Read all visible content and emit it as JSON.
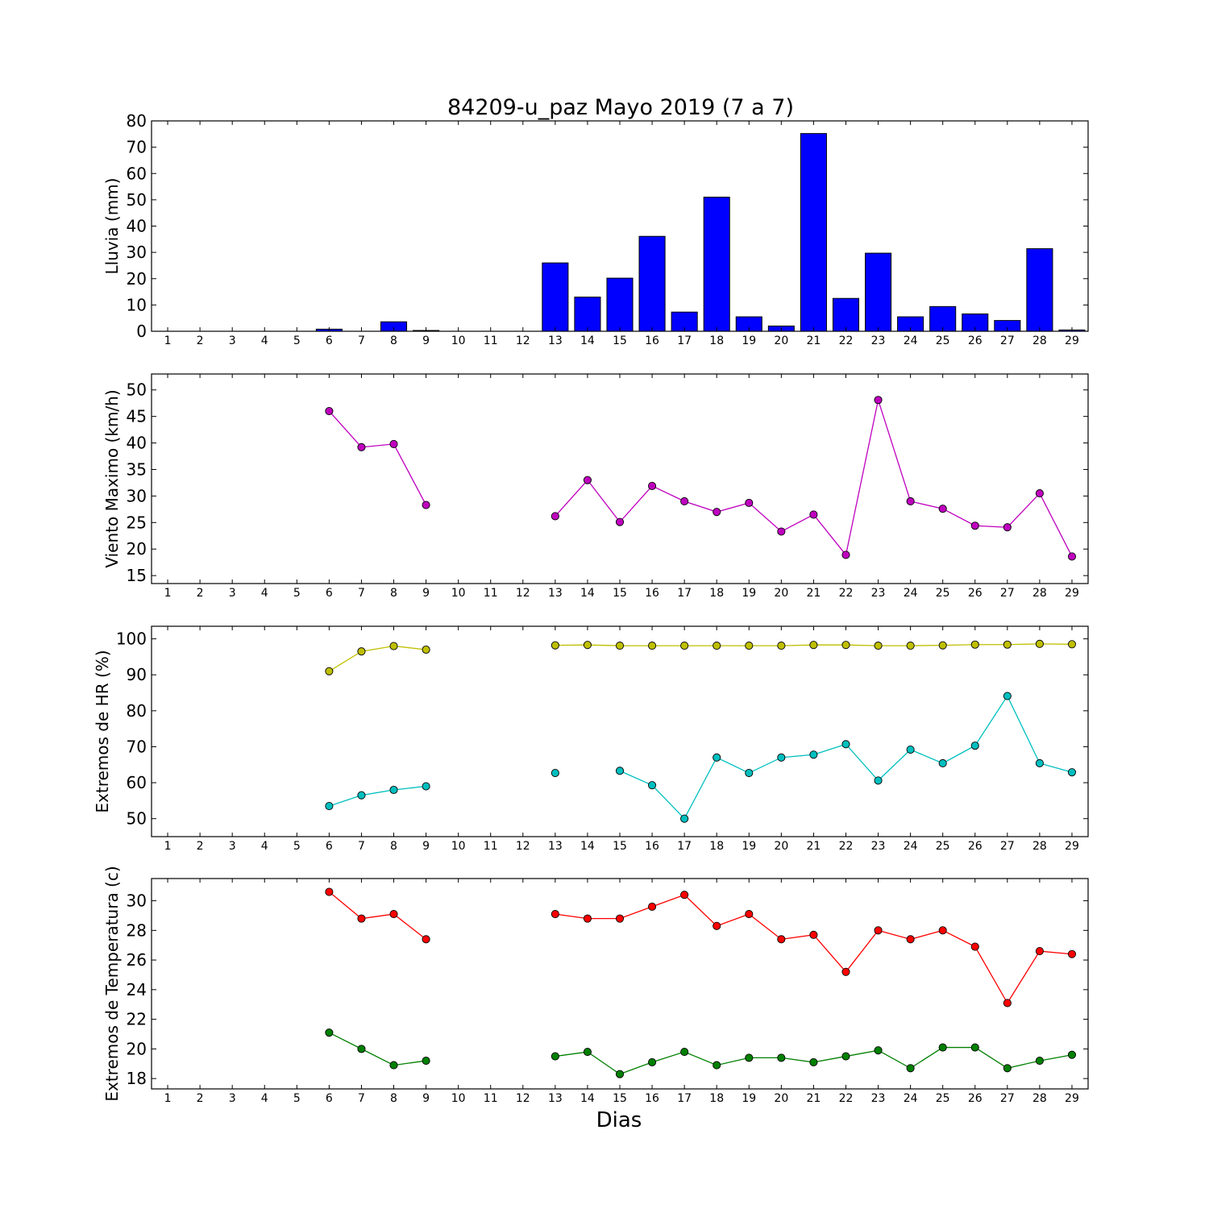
{
  "chart_data": [
    {
      "type": "bar",
      "title": "84209-u_paz Mayo 2019  (7 a 7)",
      "xlabel": "",
      "ylabel": "Lluvia (mm)",
      "ylim": [
        0,
        80
      ],
      "yticks": [
        0,
        10,
        20,
        30,
        40,
        50,
        60,
        70,
        80
      ],
      "categories": [
        "1",
        "2",
        "3",
        "4",
        "5",
        "6",
        "7",
        "8",
        "9",
        "10",
        "11",
        "12",
        "13",
        "14",
        "15",
        "16",
        "17",
        "18",
        "19",
        "20",
        "21",
        "22",
        "23",
        "24",
        "25",
        "26",
        "27",
        "28",
        "29"
      ],
      "series": [
        {
          "color": "#0000ff",
          "values": [
            0,
            0,
            0,
            0,
            0,
            0.8,
            0,
            3.6,
            0.3,
            0,
            0,
            0,
            26,
            13,
            20.2,
            36.1,
            7.3,
            51,
            5.5,
            2,
            75.2,
            12.5,
            29.7,
            5.5,
            9.4,
            6.6,
            4.1,
            31.4,
            0.5
          ]
        }
      ]
    },
    {
      "type": "line",
      "title": "",
      "xlabel": "",
      "ylabel": "Viento Maximo (km/h)",
      "ylim": [
        13.5,
        53
      ],
      "yticks": [
        15,
        20,
        25,
        30,
        35,
        40,
        45,
        50
      ],
      "categories": [
        "1",
        "2",
        "3",
        "4",
        "5",
        "6",
        "7",
        "8",
        "9",
        "10",
        "11",
        "12",
        "13",
        "14",
        "15",
        "16",
        "17",
        "18",
        "19",
        "20",
        "21",
        "22",
        "23",
        "24",
        "25",
        "26",
        "27",
        "28",
        "29"
      ],
      "series": [
        {
          "color": "#bf00bf",
          "values": [
            null,
            null,
            null,
            null,
            null,
            46,
            39.2,
            39.8,
            28.3,
            null,
            null,
            null,
            26.2,
            33,
            25.1,
            31.9,
            29,
            27,
            28.7,
            23.3,
            26.5,
            18.9,
            48.1,
            29,
            27.6,
            24.4,
            24.1,
            30.5,
            18.6
          ]
        }
      ]
    },
    {
      "type": "line",
      "title": "",
      "xlabel": "",
      "ylabel": "Extremos de HR (%)",
      "ylim": [
        45,
        103.5
      ],
      "yticks": [
        50,
        60,
        70,
        80,
        90,
        100
      ],
      "categories": [
        "1",
        "2",
        "3",
        "4",
        "5",
        "6",
        "7",
        "8",
        "9",
        "10",
        "11",
        "12",
        "13",
        "14",
        "15",
        "16",
        "17",
        "18",
        "19",
        "20",
        "21",
        "22",
        "23",
        "24",
        "25",
        "26",
        "27",
        "28",
        "29"
      ],
      "series": [
        {
          "color": "#bfbf00",
          "values": [
            null,
            null,
            null,
            null,
            null,
            91,
            96.5,
            98,
            97,
            null,
            null,
            null,
            98.2,
            98.3,
            98.1,
            98.1,
            98.1,
            98.1,
            98.1,
            98.1,
            98.3,
            98.3,
            98.1,
            98.1,
            98.2,
            98.4,
            98.4,
            98.6,
            98.5
          ]
        },
        {
          "color": "#00bfbf",
          "values": [
            null,
            null,
            null,
            null,
            null,
            53.5,
            56.5,
            58,
            59,
            null,
            null,
            null,
            62.7,
            null,
            63.3,
            59.3,
            50,
            67,
            62.7,
            67,
            67.8,
            70.7,
            60.6,
            69.2,
            65.4,
            70.3,
            84.1,
            65.4,
            62.9
          ]
        }
      ]
    },
    {
      "type": "line",
      "title": "",
      "xlabel": "Dias",
      "ylabel": "Extremos de Temperatura (c)",
      "ylim": [
        17.3,
        31.5
      ],
      "yticks": [
        18,
        20,
        22,
        24,
        26,
        28,
        30
      ],
      "categories": [
        "1",
        "2",
        "3",
        "4",
        "5",
        "6",
        "7",
        "8",
        "9",
        "10",
        "11",
        "12",
        "13",
        "14",
        "15",
        "16",
        "17",
        "18",
        "19",
        "20",
        "21",
        "22",
        "23",
        "24",
        "25",
        "26",
        "27",
        "28",
        "29"
      ],
      "series": [
        {
          "color": "#ff0000",
          "values": [
            null,
            null,
            null,
            null,
            null,
            30.6,
            28.8,
            29.1,
            27.4,
            null,
            null,
            null,
            29.1,
            28.8,
            28.8,
            29.6,
            30.4,
            28.3,
            29.1,
            27.4,
            27.7,
            25.2,
            28,
            27.4,
            28,
            26.9,
            23.1,
            26.6,
            26.4
          ]
        },
        {
          "color": "#008000",
          "values": [
            null,
            null,
            null,
            null,
            null,
            21.1,
            20,
            18.9,
            19.2,
            null,
            null,
            null,
            19.5,
            19.8,
            18.3,
            19.1,
            19.8,
            18.9,
            19.4,
            19.4,
            19.1,
            19.5,
            19.9,
            18.7,
            20.1,
            20.1,
            18.7,
            19.2,
            19.6
          ]
        }
      ]
    }
  ]
}
